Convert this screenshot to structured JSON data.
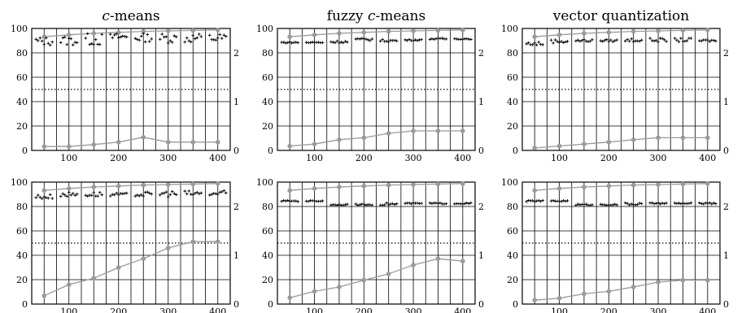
{
  "chart_data": [
    {
      "type": "line",
      "title": "c-means",
      "title_italic": "c",
      "title_rest": "-means",
      "x": [
        50,
        100,
        150,
        200,
        250,
        300,
        350,
        400
      ],
      "xlim": [
        25,
        425
      ],
      "ylim_left": [
        0,
        100
      ],
      "ylim_right": [
        0,
        2.5
      ],
      "x_ticks": [
        "100",
        "200",
        "300",
        "400"
      ],
      "y_ticks_left": [
        "0",
        "20",
        "40",
        "60",
        "80",
        "100"
      ],
      "y_ticks_right": [
        "0",
        "1",
        "2"
      ],
      "reference_line": 50,
      "grid": true,
      "series": [
        {
          "axis": "right",
          "values": [
            2.33,
            2.37,
            2.4,
            2.42,
            2.44,
            2.45,
            2.46,
            2.47
          ]
        },
        {
          "axis": "right",
          "values": [
            0.08,
            0.08,
            0.12,
            0.17,
            0.27,
            0.17,
            0.17,
            0.17
          ]
        }
      ],
      "scatter": [
        [
          86,
          93
        ],
        [
          86,
          94
        ],
        [
          86,
          96
        ],
        [
          90,
          96
        ],
        [
          89,
          96
        ],
        [
          88,
          96
        ],
        [
          88,
          96
        ],
        [
          88,
          96
        ]
      ]
    },
    {
      "type": "line",
      "title": "fuzzy c-means",
      "title_prefix": "fuzzy ",
      "title_italic": "c",
      "title_rest": "-means",
      "x": [
        50,
        100,
        150,
        200,
        250,
        300,
        350,
        400
      ],
      "xlim": [
        25,
        425
      ],
      "ylim_left": [
        0,
        100
      ],
      "ylim_right": [
        0,
        2.5
      ],
      "x_ticks": [
        "100",
        "200",
        "300",
        "400"
      ],
      "y_ticks_left": [
        "0",
        "20",
        "40",
        "60",
        "80",
        "100"
      ],
      "y_ticks_right": [
        "0",
        "1",
        "2"
      ],
      "reference_line": 50,
      "grid": true,
      "series": [
        {
          "axis": "right",
          "values": [
            2.33,
            2.37,
            2.4,
            2.42,
            2.44,
            2.45,
            2.46,
            2.47
          ]
        },
        {
          "axis": "right",
          "values": [
            0.09,
            0.13,
            0.22,
            0.26,
            0.35,
            0.4,
            0.4,
            0.4
          ]
        }
      ],
      "scatter": [
        [
          88,
          89
        ],
        [
          88,
          89
        ],
        [
          88,
          90
        ],
        [
          90,
          92
        ],
        [
          89,
          91
        ],
        [
          90,
          91
        ],
        [
          91,
          92
        ],
        [
          91,
          92
        ]
      ]
    },
    {
      "type": "line",
      "title": "vector quantization",
      "x": [
        50,
        100,
        150,
        200,
        250,
        300,
        350,
        400
      ],
      "xlim": [
        25,
        425
      ],
      "ylim_left": [
        0,
        100
      ],
      "ylim_right": [
        0,
        2.5
      ],
      "x_ticks": [
        "100",
        "200",
        "300",
        "400"
      ],
      "y_ticks_left": [
        "0",
        "20",
        "40",
        "60",
        "80",
        "100"
      ],
      "y_ticks_right": [
        "0",
        "1",
        "2"
      ],
      "reference_line": 50,
      "grid": true,
      "series": [
        {
          "axis": "right",
          "values": [
            2.33,
            2.37,
            2.4,
            2.42,
            2.44,
            2.45,
            2.46,
            2.47
          ]
        },
        {
          "axis": "right",
          "values": [
            0.05,
            0.09,
            0.13,
            0.17,
            0.22,
            0.26,
            0.26,
            0.26
          ]
        }
      ],
      "scatter": [
        [
          86,
          89
        ],
        [
          88,
          91
        ],
        [
          89,
          91
        ],
        [
          89,
          91
        ],
        [
          89,
          92
        ],
        [
          89,
          92
        ],
        [
          89,
          92
        ],
        [
          89,
          91
        ]
      ]
    },
    {
      "type": "line",
      "title": "",
      "x": [
        50,
        100,
        150,
        200,
        250,
        300,
        350,
        400
      ],
      "xlim": [
        25,
        425
      ],
      "ylim_left": [
        0,
        100
      ],
      "ylim_right": [
        0,
        2.5
      ],
      "x_ticks": [
        "100",
        "200",
        "300",
        "400"
      ],
      "y_ticks_left": [
        "0",
        "20",
        "40",
        "60",
        "80",
        "100"
      ],
      "y_ticks_right": [
        "0",
        "1",
        "2"
      ],
      "reference_line": 50,
      "grid": true,
      "series": [
        {
          "axis": "right",
          "values": [
            2.33,
            2.37,
            2.4,
            2.42,
            2.44,
            2.45,
            2.46,
            2.47
          ]
        },
        {
          "axis": "right",
          "values": [
            0.17,
            0.4,
            0.53,
            0.75,
            0.93,
            1.15,
            1.28,
            1.28
          ]
        }
      ],
      "scatter": [
        [
          86,
          90
        ],
        [
          88,
          92
        ],
        [
          88,
          92
        ],
        [
          88,
          91
        ],
        [
          88,
          92
        ],
        [
          88,
          93
        ],
        [
          88,
          93
        ],
        [
          88,
          93
        ]
      ]
    },
    {
      "type": "line",
      "title": "",
      "x": [
        50,
        100,
        150,
        200,
        250,
        300,
        350,
        400
      ],
      "xlim": [
        25,
        425
      ],
      "ylim_left": [
        0,
        100
      ],
      "ylim_right": [
        0,
        2.5
      ],
      "x_ticks": [
        "100",
        "200",
        "300",
        "400"
      ],
      "y_ticks_left": [
        "0",
        "20",
        "40",
        "60",
        "80",
        "100"
      ],
      "y_ticks_right": [
        "0",
        "1",
        "2"
      ],
      "reference_line": 50,
      "grid": true,
      "series": [
        {
          "axis": "right",
          "values": [
            2.33,
            2.37,
            2.4,
            2.42,
            2.44,
            2.45,
            2.46,
            2.47
          ]
        },
        {
          "axis": "right",
          "values": [
            0.13,
            0.26,
            0.35,
            0.49,
            0.62,
            0.8,
            0.93,
            0.88
          ]
        }
      ],
      "scatter": [
        [
          84,
          85
        ],
        [
          84,
          85
        ],
        [
          81,
          82
        ],
        [
          81,
          82
        ],
        [
          81,
          83
        ],
        [
          82,
          83
        ],
        [
          82,
          83
        ],
        [
          82,
          83
        ]
      ]
    },
    {
      "type": "line",
      "title": "",
      "x": [
        50,
        100,
        150,
        200,
        250,
        300,
        350,
        400
      ],
      "xlim": [
        25,
        425
      ],
      "ylim_left": [
        0,
        100
      ],
      "ylim_right": [
        0,
        2.5
      ],
      "x_ticks": [
        "100",
        "200",
        "300",
        "400"
      ],
      "y_ticks_left": [
        "0",
        "20",
        "40",
        "60",
        "80",
        "100"
      ],
      "y_ticks_right": [
        "0",
        "1",
        "2"
      ],
      "reference_line": 50,
      "grid": true,
      "series": [
        {
          "axis": "right",
          "values": [
            2.33,
            2.37,
            2.4,
            2.42,
            2.44,
            2.45,
            2.46,
            2.47
          ]
        },
        {
          "axis": "right",
          "values": [
            0.08,
            0.12,
            0.21,
            0.26,
            0.35,
            0.45,
            0.49,
            0.49
          ]
        }
      ],
      "scatter": [
        [
          84,
          85
        ],
        [
          84,
          85
        ],
        [
          81,
          82
        ],
        [
          81,
          82
        ],
        [
          81,
          83
        ],
        [
          82,
          83
        ],
        [
          82,
          83
        ],
        [
          82,
          83
        ]
      ]
    }
  ],
  "colors": {
    "axes": "#000000",
    "grid": "#000000",
    "reference": "#000000",
    "series": "#9a9a9a",
    "markers": "#000000"
  }
}
